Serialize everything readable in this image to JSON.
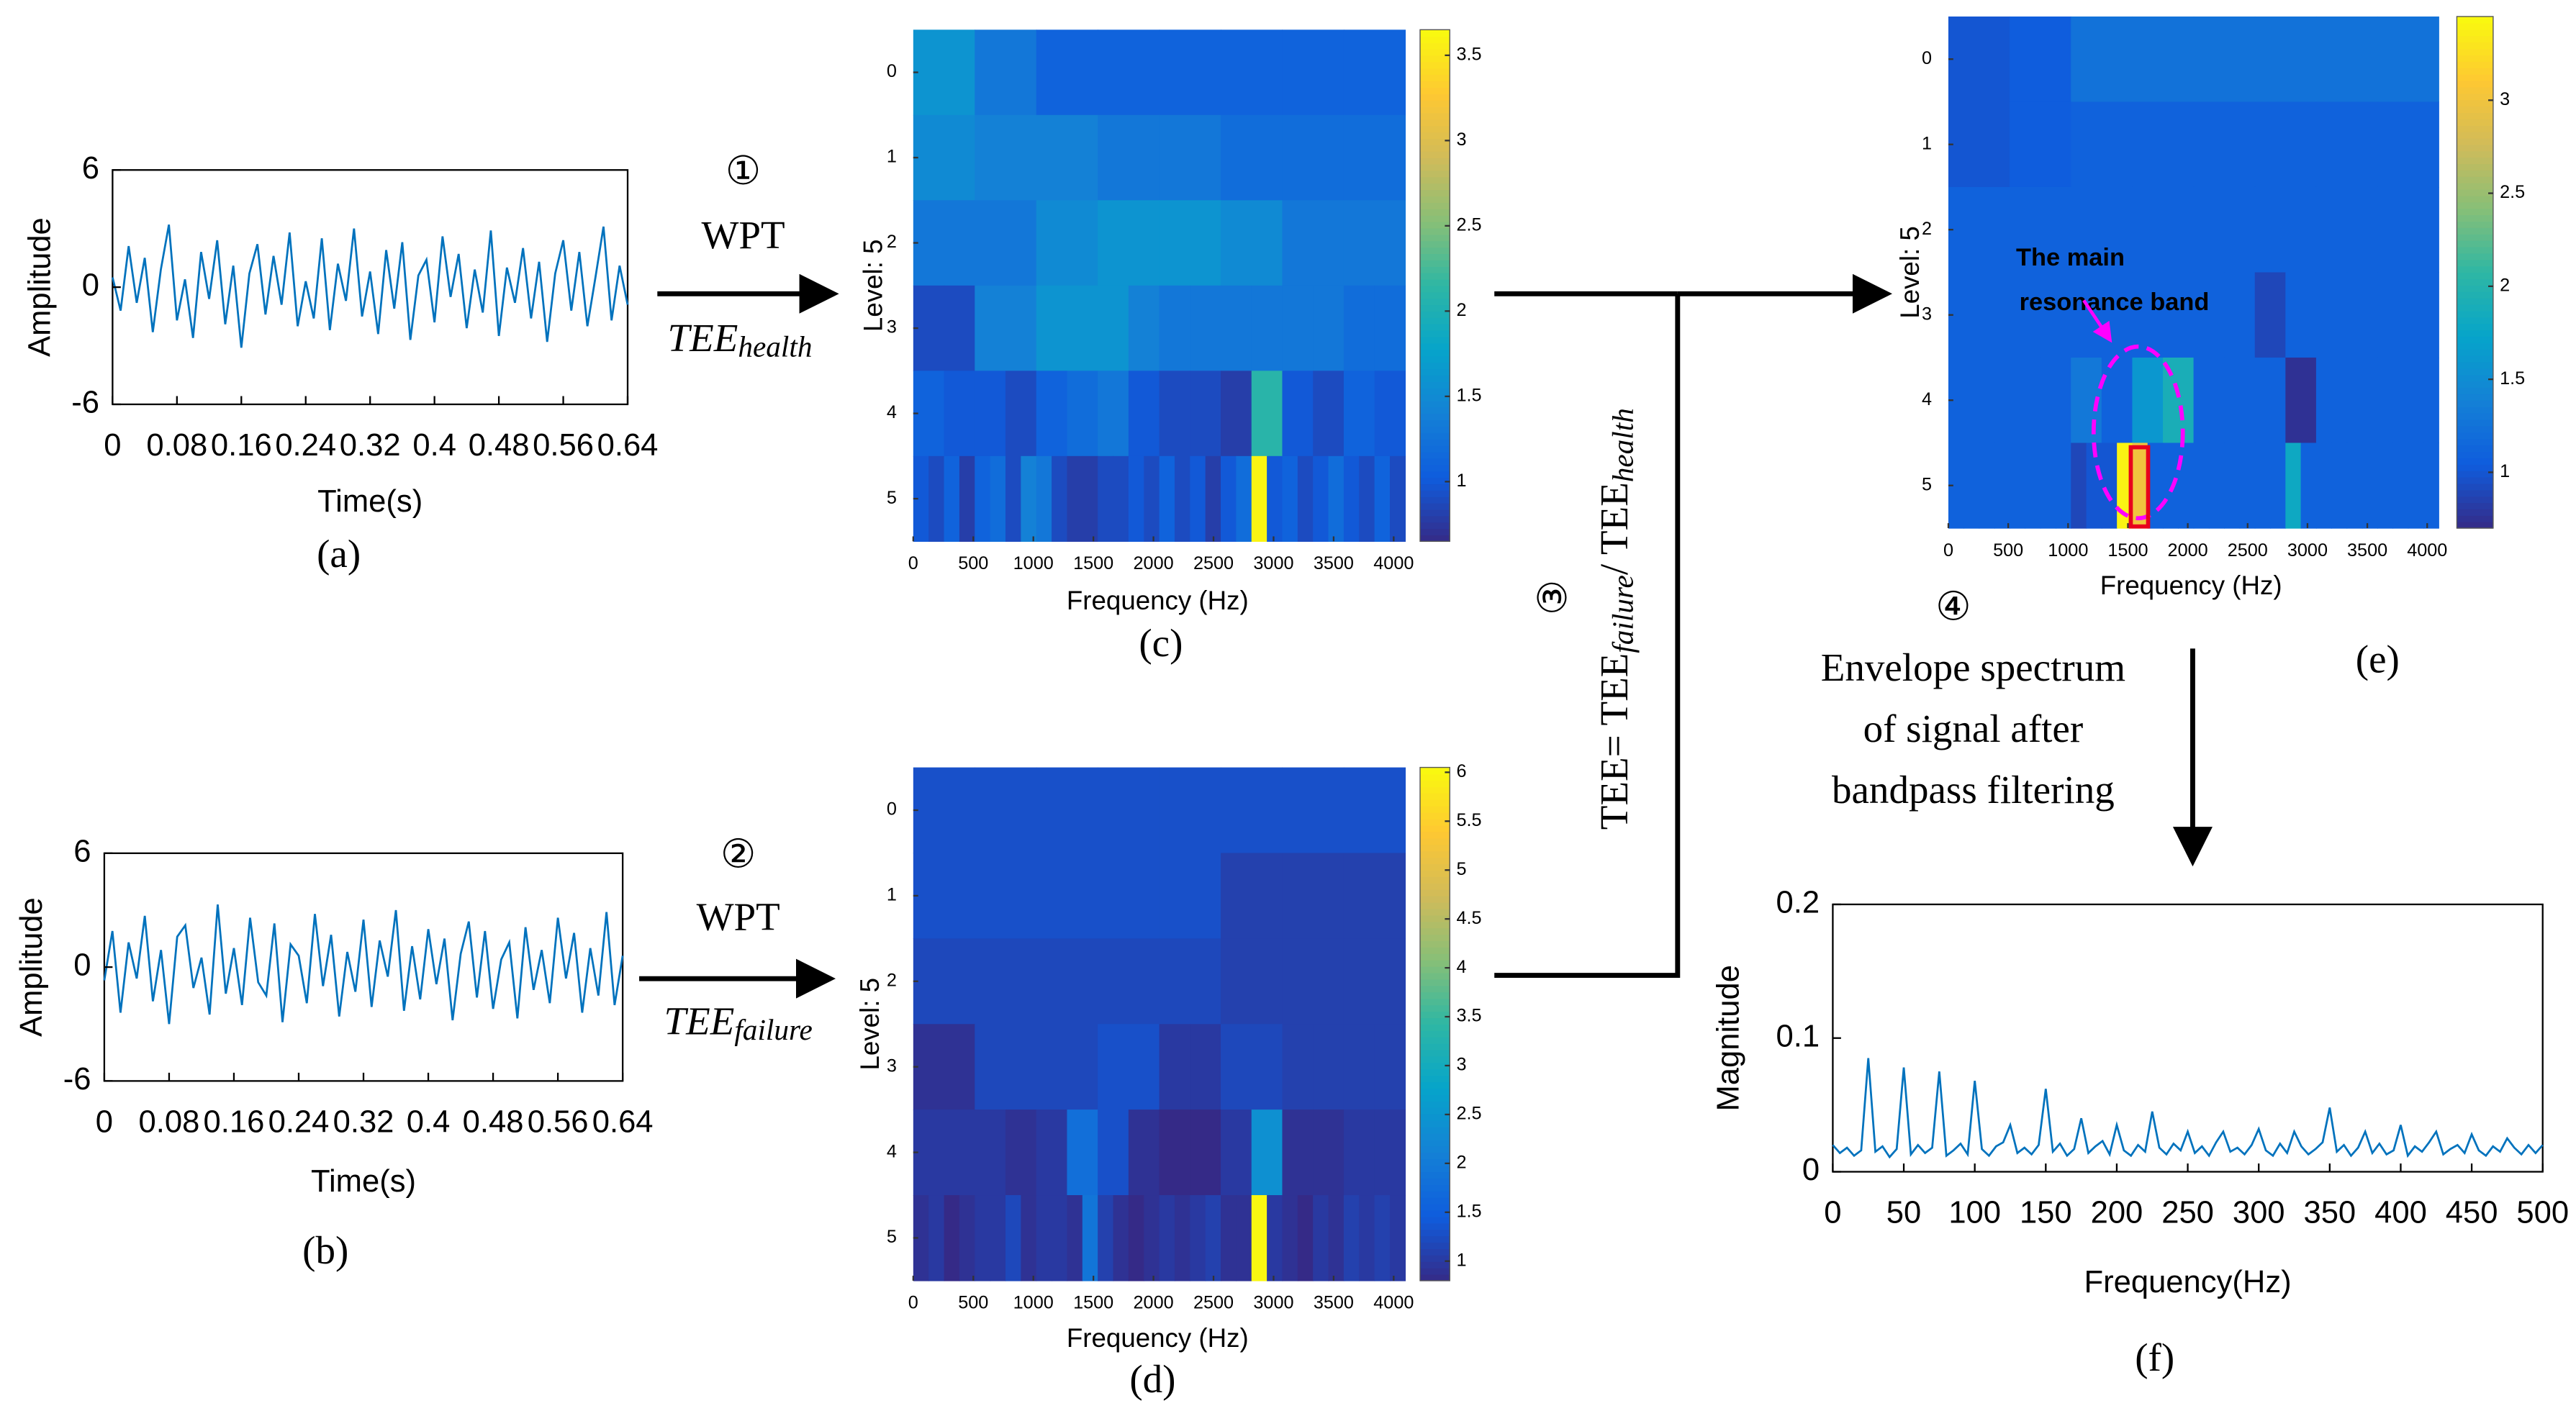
{
  "steps": [
    {
      "number": "①",
      "method": "WPT",
      "symbol": "TEE",
      "subscript": "health"
    },
    {
      "number": "②",
      "method": "WPT",
      "symbol": "TEE",
      "subscript": "failure"
    }
  ],
  "ratio": {
    "number": "③",
    "parts": [
      "TEE= TEE",
      "failure",
      "/ TEE",
      "health"
    ]
  },
  "envelope": {
    "number": "④",
    "lines": [
      "Envelope spectrum",
      "of signal after",
      "bandpass filtering"
    ]
  },
  "chart_data": [
    {
      "type": "line",
      "caption": "(a)",
      "xlabel": "Time(s)",
      "ylabel": "Amplitude",
      "color": "#0072bd",
      "xlim": [
        0,
        0.64
      ],
      "xticks": [
        0,
        0.08,
        0.16,
        0.24,
        0.32,
        0.4,
        0.48,
        0.56,
        0.64
      ],
      "ylim": [
        -6,
        6
      ],
      "yticks": [
        -6,
        0,
        6
      ],
      "x": [
        0,
        0.01,
        0.02,
        0.03,
        0.04,
        0.05,
        0.06,
        0.07,
        0.08,
        0.09,
        0.1,
        0.11,
        0.12,
        0.13,
        0.14,
        0.15,
        0.16,
        0.17,
        0.18,
        0.19,
        0.2,
        0.21,
        0.22,
        0.23,
        0.24,
        0.25,
        0.26,
        0.27,
        0.28,
        0.29,
        0.3,
        0.31,
        0.32,
        0.33,
        0.34,
        0.35,
        0.36,
        0.37,
        0.38,
        0.39,
        0.4,
        0.41,
        0.42,
        0.43,
        0.44,
        0.45,
        0.46,
        0.47,
        0.48,
        0.49,
        0.5,
        0.51,
        0.52,
        0.53,
        0.54,
        0.55,
        0.56,
        0.57,
        0.58,
        0.59,
        0.6,
        0.61,
        0.62,
        0.63,
        0.64
      ],
      "values": [
        0.5,
        -1.2,
        2.1,
        -0.8,
        1.5,
        -2.3,
        0.9,
        3.2,
        -1.7,
        0.4,
        -2.6,
        1.8,
        -0.6,
        2.4,
        -1.9,
        1.1,
        -3.1,
        0.7,
        2.2,
        -1.4,
        1.6,
        -0.9,
        2.8,
        -2.0,
        0.3,
        -1.6,
        2.5,
        -2.2,
        1.2,
        -0.7,
        3.0,
        -1.5,
        0.8,
        -2.4,
        1.9,
        -1.1,
        2.3,
        -2.7,
        0.6,
        1.4,
        -1.8,
        2.6,
        -0.5,
        1.7,
        -2.1,
        0.9,
        -1.3,
        2.9,
        -2.5,
        1.0,
        -0.8,
        2.0,
        -1.6,
        1.3,
        -2.8,
        0.7,
        2.4,
        -1.2,
        1.8,
        -2.0,
        0.5,
        3.1,
        -1.7,
        1.1,
        -0.9
      ]
    },
    {
      "type": "line",
      "caption": "(b)",
      "xlabel": "Time(s)",
      "ylabel": "Amplitude",
      "color": "#0072bd",
      "xlim": [
        0,
        0.64
      ],
      "xticks": [
        0,
        0.08,
        0.16,
        0.24,
        0.32,
        0.4,
        0.48,
        0.56,
        0.64
      ],
      "ylim": [
        -6,
        6
      ],
      "yticks": [
        -6,
        0,
        6
      ],
      "x": [
        0,
        0.01,
        0.02,
        0.03,
        0.04,
        0.05,
        0.06,
        0.07,
        0.08,
        0.09,
        0.1,
        0.11,
        0.12,
        0.13,
        0.14,
        0.15,
        0.16,
        0.17,
        0.18,
        0.19,
        0.2,
        0.21,
        0.22,
        0.23,
        0.24,
        0.25,
        0.26,
        0.27,
        0.28,
        0.29,
        0.3,
        0.31,
        0.32,
        0.33,
        0.34,
        0.35,
        0.36,
        0.37,
        0.38,
        0.39,
        0.4,
        0.41,
        0.42,
        0.43,
        0.44,
        0.45,
        0.46,
        0.47,
        0.48,
        0.49,
        0.5,
        0.51,
        0.52,
        0.53,
        0.54,
        0.55,
        0.56,
        0.57,
        0.58,
        0.59,
        0.6,
        0.61,
        0.62,
        0.63,
        0.64
      ],
      "values": [
        -0.7,
        1.9,
        -2.4,
        1.3,
        -0.6,
        2.7,
        -1.8,
        0.9,
        -3.0,
        1.6,
        2.2,
        -1.1,
        0.5,
        -2.5,
        3.3,
        -1.4,
        1.0,
        -2.0,
        2.6,
        -0.8,
        -1.5,
        2.3,
        -2.9,
        1.2,
        0.6,
        -1.9,
        2.8,
        -1.0,
        1.7,
        -2.6,
        0.8,
        -1.3,
        2.5,
        -2.1,
        1.4,
        -0.5,
        3.0,
        -2.3,
        1.1,
        -1.7,
        2.0,
        -0.9,
        1.5,
        -2.8,
        0.7,
        2.4,
        -1.6,
        1.9,
        -2.2,
        0.4,
        1.3,
        -2.7,
        2.1,
        -1.2,
        0.9,
        -1.9,
        2.6,
        -0.6,
        1.8,
        -2.4,
        1.0,
        -1.5,
        2.9,
        -2.0,
        0.6
      ]
    },
    {
      "type": "heatmap",
      "caption": "(c)",
      "xlabel": "Frequency (Hz)",
      "ylabel": "Level: 5",
      "xlim": [
        0,
        4096
      ],
      "xticks": [
        0,
        500,
        1000,
        1500,
        2000,
        2500,
        3000,
        3500,
        4000
      ],
      "ylim": [
        -0.5,
        5.5
      ],
      "yticks": [
        0,
        1,
        2,
        3,
        4,
        5
      ],
      "clim": [
        0.65,
        3.65
      ],
      "cticks": [
        1,
        1.5,
        2,
        2.5,
        3,
        3.5
      ],
      "values": [
        [
          1.6,
          1.3,
          1.1,
          1.1,
          1.1,
          1.1,
          1.1,
          1.1
        ],
        [
          1.5,
          1.4,
          1.4,
          1.3,
          1.3,
          1.2,
          1.2,
          1.2
        ],
        [
          1.3,
          1.3,
          1.5,
          1.6,
          1.6,
          1.5,
          1.3,
          1.3
        ],
        [
          0.9,
          0.9,
          1.4,
          1.4,
          1.6,
          1.6,
          1.6,
          1.4,
          1.3,
          1.3,
          1.3,
          1.3,
          1.3,
          1.3,
          1.2,
          1.2
        ],
        [
          1.1,
          1.0,
          1.0,
          0.9,
          1.1,
          1.2,
          1.3,
          1.0,
          0.9,
          0.9,
          0.8,
          2.1,
          1.0,
          0.9,
          1.1,
          1.0
        ],
        [
          1.0,
          0.9,
          1.1,
          0.8,
          1.1,
          1.2,
          0.9,
          1.4,
          1.3,
          0.9,
          0.8,
          0.8,
          0.9,
          0.9,
          1.0,
          0.9,
          1.1,
          0.9,
          1.0,
          0.8,
          1.0,
          1.2,
          3.6,
          1.0,
          1.1,
          0.9,
          1.0,
          1.2,
          1.0,
          0.9,
          1.1,
          0.9
        ]
      ]
    },
    {
      "type": "heatmap",
      "caption": "(d)",
      "xlabel": "Frequency (Hz)",
      "ylabel": "Level: 5",
      "xlim": [
        0,
        4096
      ],
      "xticks": [
        0,
        500,
        1000,
        1500,
        2000,
        2500,
        3000,
        3500,
        4000
      ],
      "ylim": [
        -0.5,
        5.5
      ],
      "yticks": [
        0,
        1,
        2,
        3,
        4,
        5
      ],
      "clim": [
        0.8,
        6.05
      ],
      "cticks": [
        1,
        1.5,
        2,
        2.5,
        3,
        3.5,
        4,
        4.5,
        5,
        5.5,
        6
      ],
      "values": [
        [
          1.3,
          1.3,
          1.3,
          1.3,
          1.3,
          1.3,
          1.3,
          1.3
        ],
        [
          1.3,
          1.3,
          1.3,
          1.3,
          1.3,
          1.1,
          1.1,
          1.1
        ],
        [
          1.2,
          1.2,
          1.2,
          1.2,
          1.2,
          1.1,
          1.1,
          1.1
        ],
        [
          0.9,
          0.9,
          1.2,
          1.2,
          1.2,
          1.2,
          1.3,
          1.3,
          1.0,
          1.0,
          1.2,
          1.2,
          1.1,
          1.1,
          1.1,
          1.1
        ],
        [
          1.0,
          1.0,
          1.0,
          0.9,
          1.0,
          1.8,
          1.3,
          0.9,
          0.8,
          0.8,
          1.0,
          2.4,
          0.9,
          0.9,
          1.0,
          1.0
        ],
        [
          0.9,
          1.0,
          0.8,
          0.9,
          1.0,
          1.0,
          1.2,
          0.9,
          1.0,
          1.0,
          0.9,
          1.9,
          1.1,
          0.9,
          0.8,
          0.9,
          1.0,
          0.9,
          1.0,
          1.1,
          0.9,
          0.9,
          6.0,
          1.0,
          0.9,
          0.8,
          1.0,
          0.9,
          1.1,
          1.0,
          1.1,
          1.0
        ]
      ]
    },
    {
      "type": "heatmap",
      "caption": "(e)",
      "xlabel": "Frequency (Hz)",
      "ylabel": "Level: 5",
      "annotation": [
        "The main",
        "resonance band"
      ],
      "xlim": [
        0,
        4096
      ],
      "xticks": [
        0,
        500,
        1000,
        1500,
        2000,
        2500,
        3000,
        3500,
        4000
      ],
      "ylim": [
        -0.5,
        5.5
      ],
      "yticks": [
        0,
        1,
        2,
        3,
        4,
        5
      ],
      "clim": [
        0.7,
        3.45
      ],
      "cticks": [
        1,
        1.5,
        2,
        2.5,
        3
      ],
      "values": [
        [
          1.0,
          1.05,
          1.25,
          1.25,
          1.25,
          1.25,
          1.25,
          1.25
        ],
        [
          1.0,
          1.05,
          1.1,
          1.1,
          1.1,
          1.1,
          1.1,
          1.1
        ],
        [
          1.1,
          1.1,
          1.1,
          1.1,
          1.1,
          1.1,
          1.1,
          1.1
        ],
        [
          1.1,
          1.1,
          1.1,
          1.1,
          1.1,
          1.1,
          1.1,
          1.1,
          1.1,
          1.1,
          0.9,
          1.1,
          1.1,
          1.1,
          1.1,
          1.1
        ],
        [
          1.1,
          1.1,
          1.1,
          1.1,
          1.3,
          1.1,
          1.6,
          1.9,
          1.1,
          1.1,
          1.1,
          0.75,
          1.1,
          1.1,
          1.1,
          1.1
        ],
        [
          1.1,
          1.1,
          1.1,
          1.1,
          1.1,
          1.1,
          1.1,
          1.1,
          0.9,
          1.0,
          1.0,
          3.4,
          3.0,
          1.1,
          1.1,
          1.1,
          1.1,
          1.1,
          1.1,
          1.1,
          1.1,
          1.1,
          1.8,
          1.1,
          1.1,
          1.1,
          1.1,
          1.1,
          1.1,
          1.1,
          1.1,
          1.1
        ]
      ]
    },
    {
      "type": "line",
      "caption": "(f)",
      "xlabel": "Frequency(Hz)",
      "ylabel": "Magnitude",
      "color": "#0072bd",
      "xlim": [
        0,
        500
      ],
      "xticks": [
        0,
        50,
        100,
        150,
        200,
        250,
        300,
        350,
        400,
        450,
        500
      ],
      "ylim": [
        0,
        0.2
      ],
      "yticks": [
        0,
        0.1,
        0.2
      ],
      "x": [
        0,
        5,
        10,
        15,
        20,
        25,
        30,
        35,
        40,
        45,
        50,
        55,
        60,
        65,
        70,
        75,
        80,
        85,
        90,
        95,
        100,
        105,
        110,
        115,
        120,
        125,
        130,
        135,
        140,
        145,
        150,
        155,
        160,
        165,
        170,
        175,
        180,
        185,
        190,
        195,
        200,
        205,
        210,
        215,
        220,
        225,
        230,
        235,
        240,
        245,
        250,
        255,
        260,
        265,
        270,
        275,
        280,
        285,
        290,
        295,
        300,
        305,
        310,
        315,
        320,
        325,
        330,
        335,
        340,
        345,
        350,
        355,
        360,
        365,
        370,
        375,
        380,
        385,
        390,
        395,
        400,
        405,
        410,
        415,
        420,
        425,
        430,
        435,
        440,
        445,
        450,
        455,
        460,
        465,
        470,
        475,
        480,
        485,
        490,
        495,
        500
      ],
      "values": [
        0.02,
        0.014,
        0.018,
        0.012,
        0.016,
        0.085,
        0.015,
        0.019,
        0.011,
        0.017,
        0.078,
        0.013,
        0.02,
        0.014,
        0.018,
        0.075,
        0.012,
        0.016,
        0.021,
        0.013,
        0.068,
        0.017,
        0.012,
        0.019,
        0.022,
        0.035,
        0.014,
        0.018,
        0.013,
        0.02,
        0.062,
        0.015,
        0.021,
        0.012,
        0.017,
        0.04,
        0.014,
        0.019,
        0.023,
        0.013,
        0.035,
        0.016,
        0.012,
        0.02,
        0.015,
        0.045,
        0.018,
        0.013,
        0.021,
        0.016,
        0.03,
        0.014,
        0.019,
        0.012,
        0.022,
        0.03,
        0.015,
        0.018,
        0.013,
        0.02,
        0.032,
        0.016,
        0.012,
        0.021,
        0.014,
        0.03,
        0.019,
        0.013,
        0.017,
        0.022,
        0.048,
        0.015,
        0.02,
        0.012,
        0.018,
        0.03,
        0.014,
        0.021,
        0.013,
        0.016,
        0.035,
        0.012,
        0.019,
        0.015,
        0.022,
        0.03,
        0.013,
        0.017,
        0.02,
        0.014,
        0.028,
        0.016,
        0.012,
        0.019,
        0.015,
        0.025,
        0.018,
        0.013,
        0.02,
        0.014,
        0.02
      ]
    }
  ]
}
